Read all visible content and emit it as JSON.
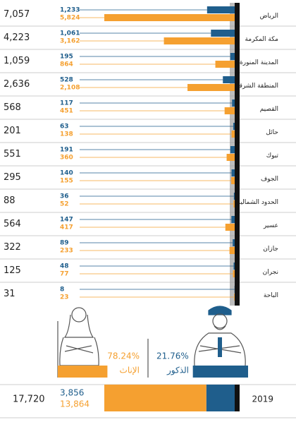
{
  "chart_data": {
    "type": "bar",
    "categories": [
      "الرياض",
      "مكة المكرمة",
      "المدينة المنورة",
      "المنطقة الشرقية",
      "القصيم",
      "حائل",
      "تبوك",
      "الجوف",
      "الحدود الشمالية",
      "عسير",
      "جازان",
      "نجران",
      "الباحة"
    ],
    "totals": [
      7057,
      4223,
      1059,
      2636,
      568,
      201,
      551,
      295,
      88,
      564,
      322,
      125,
      31
    ],
    "total_labels": [
      "7,057",
      "4,223",
      "1,059",
      "2,636",
      "568",
      "201",
      "551",
      "295",
      "88",
      "564",
      "322",
      "125",
      "31"
    ],
    "series": [
      {
        "name": "الذكور",
        "color": "#1f5e8c",
        "values": [
          1233,
          1061,
          195,
          528,
          117,
          63,
          191,
          140,
          36,
          147,
          89,
          48,
          8
        ],
        "value_labels": [
          "1,233",
          "1,061",
          "195",
          "528",
          "117",
          "63",
          "191",
          "140",
          "36",
          "147",
          "89",
          "48",
          "8"
        ]
      },
      {
        "name": "الإناث",
        "color": "#f5a030",
        "values": [
          5824,
          3162,
          864,
          2108,
          451,
          138,
          360,
          155,
          52,
          417,
          233,
          77,
          23
        ],
        "value_labels": [
          "5,824",
          "3,162",
          "864",
          "2,108",
          "451",
          "138",
          "360",
          "155",
          "52",
          "417",
          "233",
          "77",
          "23"
        ]
      }
    ],
    "summary": {
      "year": "2019",
      "total": 17720,
      "total_label": "17,720",
      "male": 3856,
      "male_label": "3,856",
      "female": 13864,
      "female_label": "13,864",
      "male_share": 21.76,
      "male_share_label": "21.76%",
      "female_share": 78.24,
      "female_share_label": "78.24%"
    }
  }
}
